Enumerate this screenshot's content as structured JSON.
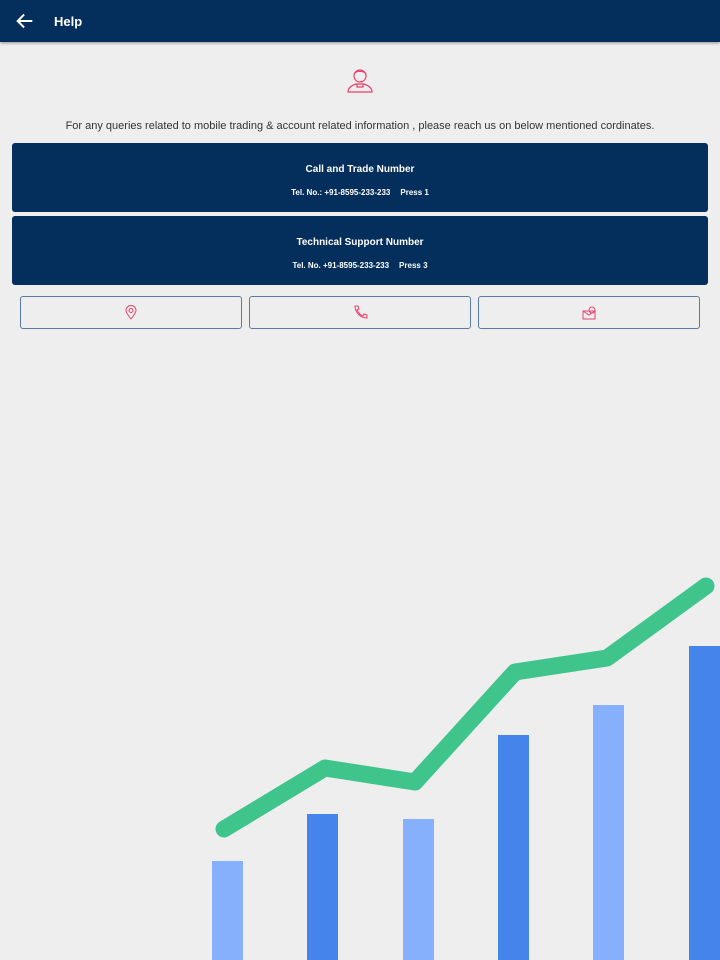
{
  "header": {
    "title": "Help",
    "back_icon": "arrow-left-icon"
  },
  "intro": {
    "icon": "customer-support-agent-icon",
    "text": "For any queries related to mobile trading & account related information , please reach us on below mentioned cordinates."
  },
  "contacts": [
    {
      "title": "Call and Trade Number",
      "tel": "Tel. No.: +91-8595-233-233",
      "press": "Press 1"
    },
    {
      "title": "Technical Support Number",
      "tel": "Tel. No. +91-8595-233-233",
      "press": "Press 3"
    }
  ],
  "actions": [
    {
      "icon": "location-pin-icon"
    },
    {
      "icon": "phone-icon"
    },
    {
      "icon": "email-icon"
    }
  ],
  "colors": {
    "primary": "#042e5c",
    "accent": "#e8426c",
    "bar_light": "#86b0fb",
    "bar_dark": "#4584ea",
    "trend": "#3fc48c"
  }
}
